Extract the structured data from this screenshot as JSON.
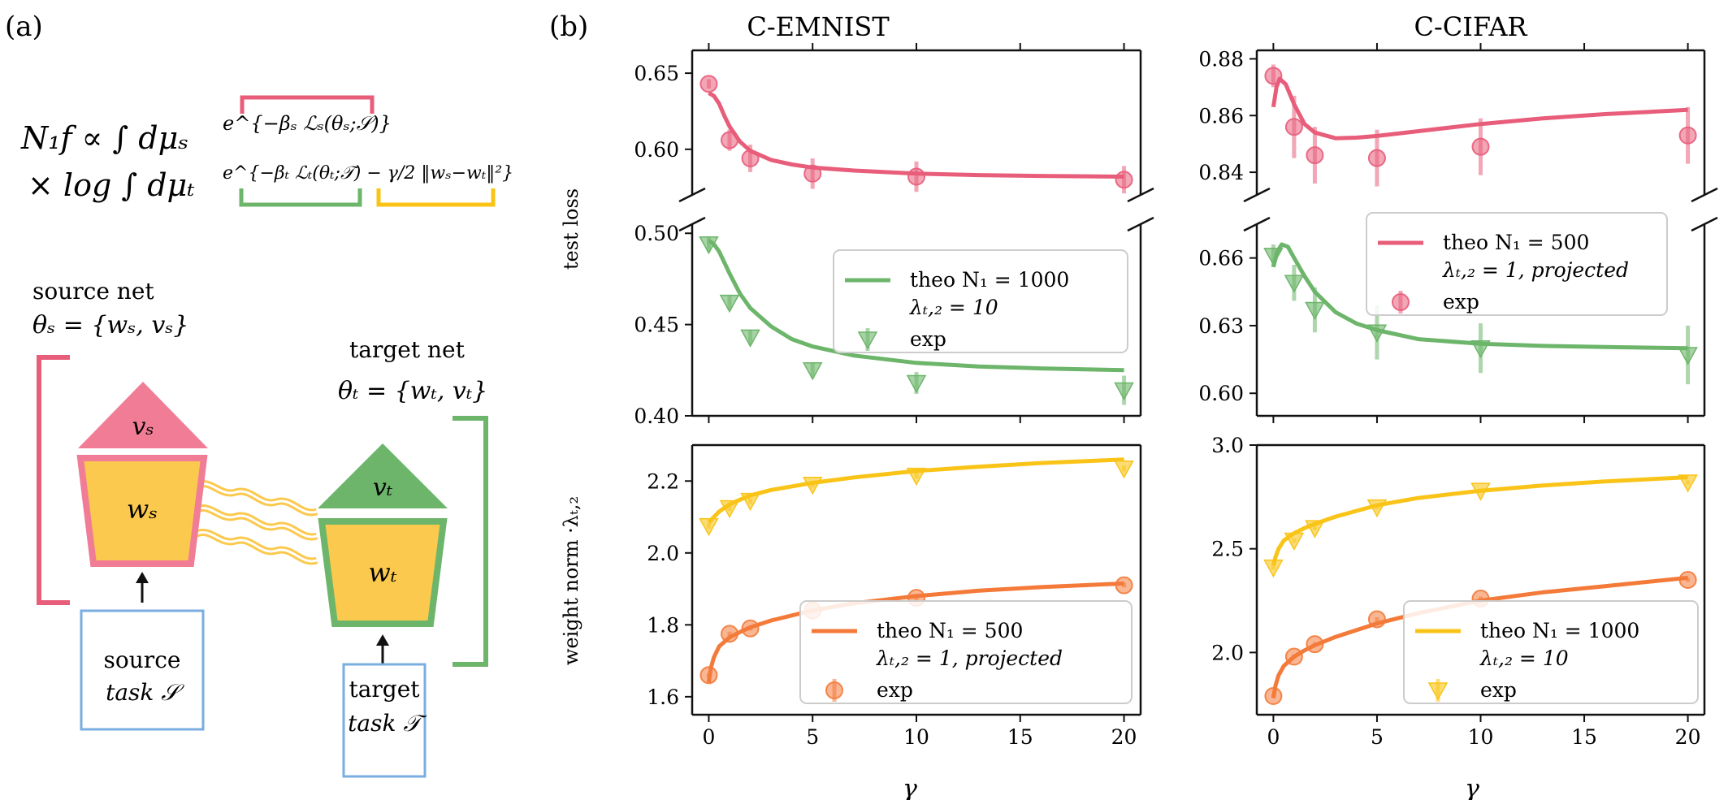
{
  "panel_labels": {
    "a": "(a)",
    "b": "(b)"
  },
  "formula": {
    "line1_lhs": "N₁f ∝ ∫ dμₛ",
    "line1_exp": "e^{−βₛ ℒₛ(θₛ;𝒮)}",
    "line2_lhs": "× log ∫ dμₜ",
    "line2_exp": "e^{−βₜ ℒₜ(θₜ;𝒯) − γ/2 ‖wₛ−wₜ‖²}"
  },
  "schematic": {
    "source_title": "source net",
    "source_params": "θₛ = {wₛ, vₛ}",
    "target_title": "target net",
    "target_params": "θₜ = {wₜ, vₜ}",
    "vs": "vₛ",
    "ws": "wₛ",
    "vt": "vₜ",
    "wt": "wₜ",
    "source_task_line1": "source",
    "source_task_line2": "task 𝒮",
    "target_task_line1": "target",
    "target_task_line2": "task 𝒯"
  },
  "colors": {
    "pink": "#e85d7a",
    "green": "#6cb56a",
    "orange": "#f47a3a",
    "yellow": "#f9c417",
    "blue": "#7aaee0",
    "gold": "#fbc94e"
  },
  "chart_data": [
    {
      "type": "line",
      "dataset": "C-EMNIST",
      "title": "C-EMNIST",
      "ylabel": "test loss",
      "broken_axis": true,
      "upper": {
        "ylim": [
          0.57,
          0.665
        ],
        "yticks": [
          0.6,
          0.65
        ],
        "yticklabels": [
          "0.60",
          "0.65"
        ],
        "series": [
          {
            "name": "theo N₁ = 500, λ_{t,2} = 1, projected",
            "color": "pink",
            "marker": "o",
            "theory": {
              "x": [
                0,
                0.25,
                0.5,
                0.75,
                1,
                1.5,
                2,
                3,
                4,
                5,
                7,
                10,
                13,
                16,
                20
              ],
              "y": [
                0.637,
                0.635,
                0.63,
                0.622,
                0.615,
                0.605,
                0.599,
                0.593,
                0.59,
                0.588,
                0.586,
                0.584,
                0.583,
                0.5825,
                0.582
              ]
            },
            "exp": {
              "x": [
                0,
                1,
                2,
                5,
                10,
                20
              ],
              "y": [
                0.643,
                0.606,
                0.594,
                0.584,
                0.582,
                0.58
              ],
              "err": [
                0.003,
                0.007,
                0.009,
                0.01,
                0.01,
                0.009
              ]
            }
          }
        ]
      },
      "lower": {
        "ylim": [
          0.4,
          0.505
        ],
        "yticks": [
          0.4,
          0.45,
          0.5
        ],
        "yticklabels": [
          "0.40",
          "0.45",
          "0.50"
        ],
        "series": [
          {
            "name": "theo N₁ = 1000, λ_{t,2} = 10",
            "color": "green",
            "marker": "v",
            "theory": {
              "x": [
                0,
                0.25,
                0.5,
                1,
                1.5,
                2,
                3,
                4,
                5,
                7,
                10,
                13,
                16,
                20
              ],
              "y": [
                0.496,
                0.494,
                0.49,
                0.478,
                0.467,
                0.459,
                0.449,
                0.442,
                0.438,
                0.433,
                0.429,
                0.427,
                0.426,
                0.425
              ],
              "label": "theo N₁ = 1000"
            },
            "exp": {
              "x": [
                0,
                1,
                2,
                5,
                10,
                20
              ],
              "y": [
                0.494,
                0.462,
                0.443,
                0.425,
                0.418,
                0.414
              ],
              "err": [
                0.004,
                0.004,
                0.004,
                0.004,
                0.006,
                0.008
              ]
            }
          }
        ],
        "legend": {
          "position": "upper-right",
          "line1": "theo N₁ = 1000",
          "line2": "λₜ,₂ = 10",
          "line3": "exp"
        }
      },
      "bottom": {
        "ylabel": "weight norm ·λₜ,₂",
        "ylim": [
          1.55,
          2.3
        ],
        "yticks": [
          1.6,
          1.8,
          2.0,
          2.2
        ],
        "yticklabels": [
          "1.6",
          "1.8",
          "2.0",
          "2.2"
        ],
        "xlim": [
          -0.8,
          20.8
        ],
        "xticks": [
          0,
          5,
          10,
          15,
          20
        ],
        "xticklabels": [
          "0",
          "5",
          "10",
          "15",
          "20"
        ],
        "xlabel": "γ",
        "series": [
          {
            "name": "theo N₁ = 1000, λ_{t,2} = 10",
            "color": "yellow",
            "marker": "v",
            "theory": {
              "x": [
                0,
                0.25,
                0.5,
                1,
                1.5,
                2,
                3,
                5,
                7,
                10,
                13,
                16,
                20
              ],
              "y": [
                2.085,
                2.1,
                2.115,
                2.135,
                2.148,
                2.16,
                2.175,
                2.195,
                2.21,
                2.228,
                2.24,
                2.25,
                2.26
              ]
            },
            "exp": {
              "x": [
                0,
                1,
                2,
                5,
                10,
                20
              ],
              "y": [
                2.075,
                2.125,
                2.145,
                2.19,
                2.215,
                2.235
              ],
              "err": [
                0.008,
                0.008,
                0.008,
                0.008,
                0.008,
                0.008
              ]
            }
          },
          {
            "name": "theo N₁ = 500, λ_{t,2} = 1, projected",
            "color": "orange",
            "marker": "o",
            "theory": {
              "x": [
                0,
                0.1,
                0.25,
                0.5,
                1,
                1.5,
                2,
                3,
                5,
                7,
                10,
                13,
                16,
                20
              ],
              "y": [
                1.64,
                1.68,
                1.71,
                1.74,
                1.765,
                1.78,
                1.793,
                1.812,
                1.84,
                1.86,
                1.88,
                1.895,
                1.905,
                1.915
              ]
            },
            "exp": {
              "x": [
                0,
                1,
                2,
                5,
                10,
                20
              ],
              "y": [
                1.66,
                1.775,
                1.79,
                1.84,
                1.875,
                1.91
              ],
              "err": [
                0.006,
                0.006,
                0.006,
                0.006,
                0.006,
                0.006
              ]
            }
          }
        ],
        "legend": {
          "position": "lower-right",
          "line1": "theo N₁ = 500",
          "line2": "λₜ,₂ = 1, projected",
          "line3": "exp"
        }
      }
    },
    {
      "type": "line",
      "dataset": "C-CIFAR",
      "title": "C-CIFAR",
      "broken_axis": true,
      "upper": {
        "ylim": [
          0.832,
          0.883
        ],
        "yticks": [
          0.84,
          0.86,
          0.88
        ],
        "yticklabels": [
          "0.84",
          "0.86",
          "0.88"
        ],
        "series": [
          {
            "name": "theo N₁ = 500, λ_{t,2} = 1, projected",
            "color": "pink",
            "marker": "o",
            "theory": {
              "x": [
                0,
                0.15,
                0.3,
                0.6,
                1,
                1.5,
                2,
                3,
                4,
                5,
                7,
                10,
                13,
                16,
                20
              ],
              "y": [
                0.863,
                0.87,
                0.873,
                0.871,
                0.864,
                0.857,
                0.854,
                0.852,
                0.8522,
                0.8528,
                0.8545,
                0.857,
                0.859,
                0.8605,
                0.862
              ]
            },
            "exp": {
              "x": [
                0,
                1,
                2,
                5,
                10,
                20
              ],
              "y": [
                0.874,
                0.856,
                0.846,
                0.845,
                0.849,
                0.853
              ],
              "err": [
                0.004,
                0.011,
                0.01,
                0.01,
                0.01,
                0.01
              ]
            }
          }
        ],
        "legend": {
          "position": "lower-right",
          "line1": "theo N₁ = 500",
          "line2": "λₜ,₂ = 1, projected",
          "line3": "exp"
        }
      },
      "lower": {
        "ylim": [
          0.59,
          0.675
        ],
        "yticks": [
          0.6,
          0.63,
          0.66
        ],
        "yticklabels": [
          "0.60",
          "0.63",
          "0.66"
        ],
        "series": [
          {
            "name": "theo N₁ = 1000, λ_{t,2} = 10",
            "color": "green",
            "marker": "v",
            "theory": {
              "x": [
                0,
                0.2,
                0.4,
                0.7,
                1,
                1.5,
                2,
                3,
                4,
                5,
                7,
                10,
                13,
                16,
                20
              ],
              "y": [
                0.656,
                0.663,
                0.666,
                0.665,
                0.66,
                0.652,
                0.645,
                0.636,
                0.631,
                0.628,
                0.624,
                0.622,
                0.621,
                0.6205,
                0.62
              ]
            },
            "exp": {
              "x": [
                0,
                1,
                2,
                5,
                10,
                20
              ],
              "y": [
                0.661,
                0.649,
                0.637,
                0.627,
                0.62,
                0.617
              ],
              "err": [
                0.005,
                0.008,
                0.01,
                0.012,
                0.011,
                0.013
              ]
            }
          }
        ]
      },
      "bottom": {
        "ylim": [
          1.7,
          3.0
        ],
        "yticks": [
          2.0,
          2.5,
          3.0
        ],
        "yticklabels": [
          "2.0",
          "2.5",
          "3.0"
        ],
        "xlim": [
          -0.8,
          20.8
        ],
        "xticks": [
          0,
          5,
          10,
          15,
          20
        ],
        "xticklabels": [
          "0",
          "5",
          "10",
          "15",
          "20"
        ],
        "xlabel": "γ",
        "series": [
          {
            "name": "theo N₁ = 1000, λ_{t,2} = 10",
            "color": "yellow",
            "marker": "v",
            "theory": {
              "x": [
                0,
                0.1,
                0.25,
                0.5,
                1,
                1.5,
                2,
                3,
                5,
                7,
                10,
                13,
                16,
                20
              ],
              "y": [
                2.42,
                2.46,
                2.5,
                2.54,
                2.575,
                2.6,
                2.62,
                2.655,
                2.71,
                2.745,
                2.78,
                2.805,
                2.825,
                2.845
              ]
            },
            "exp": {
              "x": [
                0,
                1,
                2,
                5,
                10,
                20
              ],
              "y": [
                2.41,
                2.54,
                2.6,
                2.7,
                2.78,
                2.82
              ],
              "err": [
                0.01,
                0.01,
                0.01,
                0.01,
                0.01,
                0.01
              ]
            }
          },
          {
            "name": "theo N₁ = 500, λ_{t,2} = 1, projected",
            "color": "orange",
            "marker": "o",
            "theory": {
              "x": [
                0,
                0.1,
                0.25,
                0.5,
                1,
                1.5,
                2,
                3,
                5,
                7,
                10,
                13,
                16,
                20
              ],
              "y": [
                1.78,
                1.84,
                1.89,
                1.935,
                1.98,
                2.01,
                2.035,
                2.075,
                2.14,
                2.19,
                2.25,
                2.29,
                2.32,
                2.36
              ]
            },
            "exp": {
              "x": [
                0,
                1,
                2,
                5,
                10,
                20
              ],
              "y": [
                1.79,
                1.98,
                2.04,
                2.16,
                2.26,
                2.35
              ],
              "err": [
                0.01,
                0.01,
                0.01,
                0.01,
                0.01,
                0.01
              ]
            }
          }
        ],
        "legend": {
          "position": "lower-right",
          "line1": "theo N₁ = 1000",
          "line2": "λₜ,₂ = 10",
          "line3": "exp"
        }
      }
    }
  ]
}
